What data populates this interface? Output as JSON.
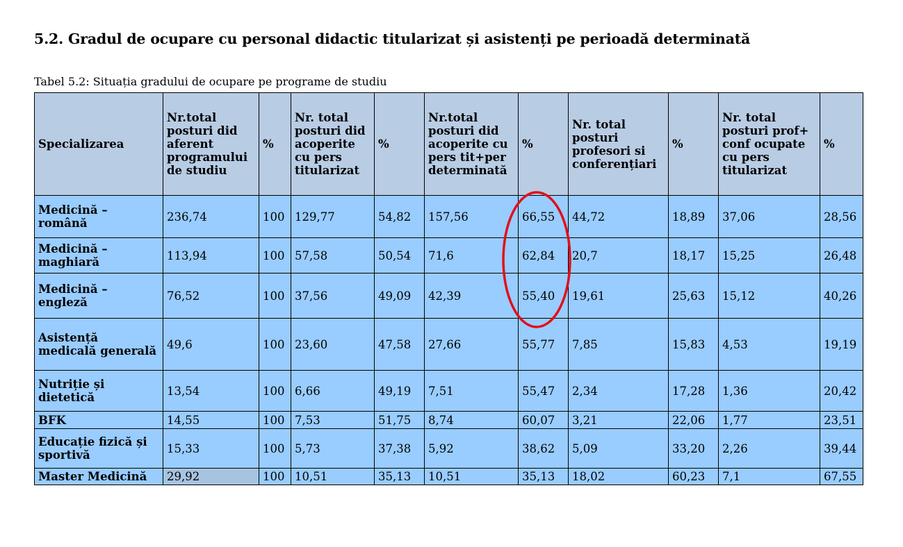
{
  "heading": "5.2. Gradul de ocupare cu personal didactic titularizat și asistenți pe perioadă determinată",
  "caption": "Tabel 5.2: Situația gradului de ocupare pe programe de studiu",
  "table": {
    "headers": [
      "Specializarea",
      "Nr.total posturi did aferent programului de studiu",
      "%",
      "Nr. total posturi did acoperite cu pers titularizat",
      "%",
      "Nr.total posturi did acoperite cu pers tit+per determinată",
      "%",
      "Nr. total posturi profesori si conferențiari",
      "%",
      "Nr.  total posturi prof+ conf ocupate cu pers titularizat",
      "%"
    ],
    "rows": [
      [
        "Medicină – română",
        "236,74",
        "100",
        "129,77",
        "54,82",
        "157,56",
        "66,55",
        "44,72",
        "18,89",
        "37,06",
        "28,56"
      ],
      [
        "Medicină – maghiară",
        "113,94",
        "100",
        "57,58",
        "50,54",
        "71,6",
        "62,84",
        "20,7",
        "18,17",
        "15,25",
        "26,48"
      ],
      [
        "Medicină – engleză",
        "76,52",
        "100",
        "37,56",
        "49,09",
        "42,39",
        "55,40",
        "19,61",
        "25,63",
        "15,12",
        "40,26"
      ],
      [
        "Asistență medicală generală",
        "49,6",
        "100",
        "23,60",
        "47,58",
        "27,66",
        "55,77",
        "7,85",
        "15,83",
        "4,53",
        "19,19"
      ],
      [
        "Nutriție și dietetică",
        "13,54",
        "100",
        "6,66",
        "49,19",
        "7,51",
        "55,47",
        "2,34",
        "17,28",
        "1,36",
        "20,42"
      ],
      [
        "BFK",
        "14,55",
        "100",
        "7,53",
        "51,75",
        "8,74",
        "60,07",
        "3,21",
        "22,06",
        "1,77",
        "23,51"
      ],
      [
        "Educație fizică și sportivă",
        "15,33",
        "100",
        "5,73",
        "37,38",
        "5,92",
        "38,62",
        "5,09",
        "33,20",
        "2,26",
        "39,44"
      ],
      [
        "Master Medicină",
        "29,92",
        "100",
        "10,51",
        "35,13",
        "10,51",
        "35,13",
        "18,02",
        "60,23",
        "7,1",
        "67,55"
      ]
    ]
  },
  "colors": {
    "header_bg": "#b8cce4",
    "row_bg": "#99ccff",
    "annotation_red": "#e0101a"
  }
}
